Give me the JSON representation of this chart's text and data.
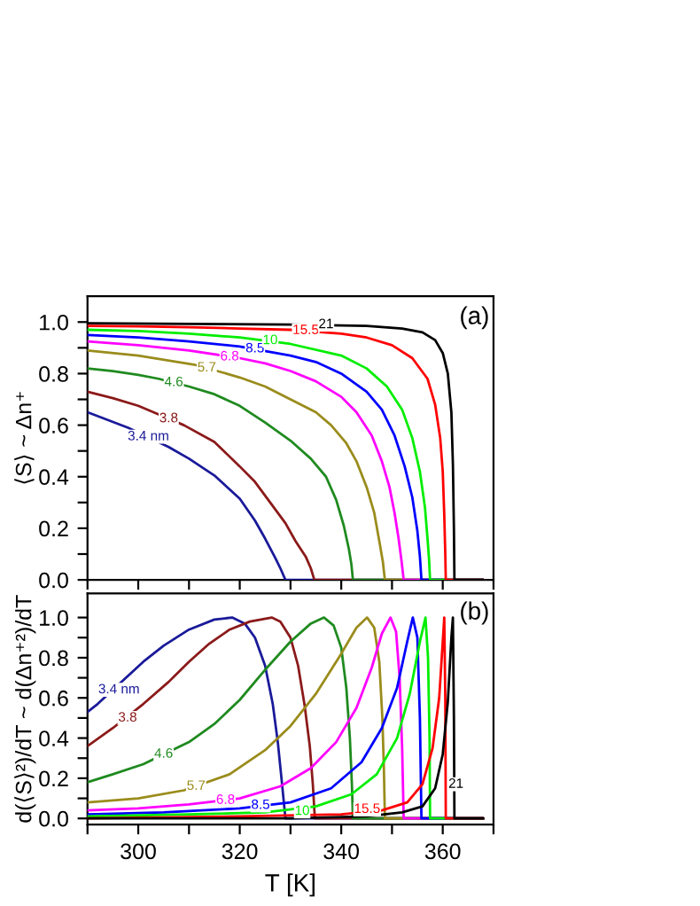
{
  "chart_data": [
    {
      "type": "line",
      "ylabel": "⟨S⟩ ~ Δn⁺",
      "xlim": [
        290,
        370
      ],
      "ylim": [
        0,
        1.1
      ],
      "xticks": [
        {
          "value": 290,
          "label": null
        },
        {
          "value": 300,
          "label": null
        },
        {
          "value": 310,
          "label": null
        },
        {
          "value": 320,
          "label": null
        },
        {
          "value": 330,
          "label": null
        },
        {
          "value": 340,
          "label": null
        },
        {
          "value": 350,
          "label": null
        },
        {
          "value": 360,
          "label": null
        },
        {
          "value": 370,
          "label": null
        }
      ],
      "yticks": [
        {
          "value": 0,
          "label": "0.0"
        },
        {
          "value": 0.1,
          "label": null
        },
        {
          "value": 0.2,
          "label": "0.2"
        },
        {
          "value": 0.3,
          "label": null
        },
        {
          "value": 0.4,
          "label": "0.4"
        },
        {
          "value": 0.5,
          "label": null
        },
        {
          "value": 0.6,
          "label": "0.6"
        },
        {
          "value": 0.7,
          "label": null
        },
        {
          "value": 0.8,
          "label": "0.8"
        },
        {
          "value": 0.9,
          "label": null
        },
        {
          "value": 1.0,
          "label": "1.0"
        }
      ],
      "tick_labels": "y",
      "grid": false,
      "legend": false,
      "marker": "none",
      "line_style": "solid",
      "series": [
        {
          "color": "#1a1a9a",
          "x": [
            290,
            294,
            298,
            306,
            310,
            315,
            320,
            323,
            325,
            327,
            328,
            329,
            368
          ],
          "values": [
            0.65,
            0.62,
            0.59,
            0.515,
            0.47,
            0.405,
            0.315,
            0.23,
            0.16,
            0.085,
            0.045,
            0,
            0
          ]
        },
        {
          "color": "#8b1a1a",
          "x": [
            290,
            295,
            300,
            303,
            309,
            315,
            320,
            323,
            326,
            329,
            331,
            333,
            334,
            334.7,
            368
          ],
          "values": [
            0.73,
            0.705,
            0.675,
            0.65,
            0.6,
            0.535,
            0.44,
            0.38,
            0.3,
            0.22,
            0.15,
            0.09,
            0.045,
            0,
            0
          ]
        },
        {
          "color": "#1f8a1f",
          "x": [
            290,
            295,
            300,
            304,
            310,
            315,
            320,
            325,
            330,
            334,
            337,
            339,
            340.5,
            341.5,
            342,
            342.3,
            368
          ],
          "values": [
            0.82,
            0.81,
            0.795,
            0.78,
            0.75,
            0.72,
            0.675,
            0.61,
            0.54,
            0.47,
            0.4,
            0.31,
            0.21,
            0.12,
            0.06,
            0,
            0
          ]
        },
        {
          "color": "#9a8c1c",
          "x": [
            290,
            300,
            311,
            316.5,
            320,
            325,
            330,
            335,
            338,
            341,
            343,
            345,
            346.5,
            347.5,
            348.2,
            348.6,
            368
          ],
          "values": [
            0.89,
            0.87,
            0.835,
            0.805,
            0.785,
            0.75,
            0.7,
            0.65,
            0.6,
            0.53,
            0.46,
            0.36,
            0.26,
            0.15,
            0.07,
            0,
            0
          ]
        },
        {
          "color": "#ff00ff",
          "x": [
            290,
            300,
            310,
            320,
            325,
            330,
            335,
            340,
            343,
            346,
            348,
            349.5,
            350.5,
            351.3,
            351.9,
            352.3,
            368
          ],
          "values": [
            0.925,
            0.91,
            0.89,
            0.86,
            0.84,
            0.81,
            0.77,
            0.71,
            0.65,
            0.56,
            0.46,
            0.36,
            0.26,
            0.16,
            0.07,
            0,
            0
          ]
        },
        {
          "color": "#0000ff",
          "x": [
            290,
            300,
            310,
            320,
            330,
            335,
            340,
            345,
            348,
            350.5,
            352.5,
            354,
            355,
            355.5,
            355.8,
            368
          ],
          "values": [
            0.95,
            0.94,
            0.925,
            0.905,
            0.87,
            0.845,
            0.8,
            0.73,
            0.66,
            0.56,
            0.44,
            0.32,
            0.19,
            0.09,
            0,
            0
          ]
        },
        {
          "color": "#00ee00",
          "x": [
            290,
            300,
            310,
            320,
            330,
            340,
            345,
            349,
            352,
            354,
            355.5,
            356.5,
            357,
            357.3,
            357.5,
            368
          ],
          "values": [
            0.97,
            0.965,
            0.955,
            0.94,
            0.915,
            0.87,
            0.82,
            0.75,
            0.66,
            0.55,
            0.42,
            0.28,
            0.16,
            0.08,
            0,
            0
          ]
        },
        {
          "color": "#ff0000",
          "x": [
            290,
            300,
            310,
            320,
            330,
            340,
            345,
            350,
            354,
            357,
            358.5,
            359.5,
            360,
            360.3,
            360.5,
            360.6,
            368
          ],
          "values": [
            0.985,
            0.983,
            0.98,
            0.975,
            0.97,
            0.955,
            0.94,
            0.91,
            0.86,
            0.78,
            0.68,
            0.55,
            0.42,
            0.25,
            0.1,
            0,
            0
          ]
        },
        {
          "color": "#000000",
          "x": [
            290,
            310,
            330,
            345,
            352,
            356,
            358.5,
            360,
            361,
            361.7,
            362,
            362.2,
            362.3,
            368
          ],
          "values": [
            0.995,
            0.993,
            0.99,
            0.985,
            0.975,
            0.96,
            0.93,
            0.88,
            0.8,
            0.65,
            0.45,
            0.2,
            0,
            0
          ]
        }
      ],
      "annotations": [
        {
          "text": "3.4 nm",
          "x": 302,
          "y": 0.555
        },
        {
          "text": "3.8",
          "x": 306,
          "y": 0.625
        },
        {
          "text": "4.6",
          "x": 307,
          "y": 0.765
        },
        {
          "text": "5.7",
          "x": 313.5,
          "y": 0.822
        },
        {
          "text": "6.8",
          "x": 318,
          "y": 0.865
        },
        {
          "text": "8.5",
          "x": 323,
          "y": 0.896
        },
        {
          "text": "10",
          "x": 326,
          "y": 0.928
        },
        {
          "text": "15.5",
          "x": 333,
          "y": 0.967
        },
        {
          "text": "21",
          "x": 337,
          "y": 0.99
        },
        "(a)"
      ]
    },
    {
      "type": "line",
      "xlabel": "T [K]",
      "ylabel": "d(⟨S⟩²)/dT ~ d(Δn⁺²)/dT",
      "xlim": [
        290,
        370
      ],
      "ylim": [
        -0.03,
        1.12
      ],
      "xticks": [
        {
          "value": 290,
          "label": null
        },
        300,
        {
          "value": 310,
          "label": null
        },
        320,
        {
          "value": 330,
          "label": null
        },
        340,
        {
          "value": 350,
          "label": null
        },
        360,
        {
          "value": 370,
          "label": null
        }
      ],
      "yticks": [
        {
          "value": 0,
          "label": "0.0"
        },
        {
          "value": 0.1,
          "label": null
        },
        {
          "value": 0.2,
          "label": "0.2"
        },
        {
          "value": 0.3,
          "label": null
        },
        {
          "value": 0.4,
          "label": "0.4"
        },
        {
          "value": 0.5,
          "label": null
        },
        {
          "value": 0.6,
          "label": "0.6"
        },
        {
          "value": 0.7,
          "label": null
        },
        {
          "value": 0.8,
          "label": "0.8"
        },
        {
          "value": 0.9,
          "label": null
        },
        {
          "value": 1.0,
          "label": "1.0"
        }
      ],
      "grid": false,
      "legend": false,
      "marker": "none",
      "line_style": "solid",
      "series": [
        {
          "color": "#1a1a9a",
          "x": [
            290,
            292,
            301,
            305,
            310,
            315,
            318.5,
            321,
            323,
            325,
            326.5,
            327.5,
            328.3,
            329,
            368
          ],
          "values": [
            0.53,
            0.57,
            0.78,
            0.86,
            0.94,
            0.99,
            1.0,
            0.97,
            0.9,
            0.76,
            0.57,
            0.38,
            0.18,
            0,
            0
          ]
        },
        {
          "color": "#8b1a1a",
          "x": [
            290,
            295,
            301,
            306,
            310,
            314,
            318,
            322,
            326.3,
            328,
            330,
            331.5,
            332.8,
            333.8,
            334.4,
            334.8,
            368
          ],
          "values": [
            0.36,
            0.45,
            0.57,
            0.68,
            0.78,
            0.87,
            0.94,
            0.98,
            1.0,
            0.98,
            0.9,
            0.76,
            0.56,
            0.36,
            0.17,
            0,
            0
          ]
        },
        {
          "color": "#1f8a1f",
          "x": [
            290,
            295,
            301,
            310,
            315,
            320,
            325,
            330,
            334,
            336.6,
            338.5,
            340,
            341,
            341.7,
            342.1,
            342.3,
            368
          ],
          "values": [
            0.18,
            0.22,
            0.27,
            0.38,
            0.47,
            0.59,
            0.74,
            0.88,
            0.97,
            1.0,
            0.96,
            0.85,
            0.65,
            0.4,
            0.17,
            0,
            0
          ]
        },
        {
          "color": "#9a8c1c",
          "x": [
            290,
            300,
            309,
            318,
            325,
            330,
            335,
            340,
            343,
            345.1,
            346.5,
            347.5,
            348.1,
            348.4,
            348.6,
            368
          ],
          "values": [
            0.08,
            0.1,
            0.14,
            0.22,
            0.34,
            0.46,
            0.62,
            0.82,
            0.95,
            1.0,
            0.95,
            0.78,
            0.5,
            0.25,
            0,
            0
          ]
        },
        {
          "color": "#ff00ff",
          "x": [
            290,
            300,
            310,
            320,
            328,
            334,
            339,
            343,
            346,
            348,
            349.7,
            350.8,
            351.5,
            352,
            352.3,
            368
          ],
          "values": [
            0.04,
            0.05,
            0.07,
            0.1,
            0.16,
            0.25,
            0.38,
            0.55,
            0.75,
            0.92,
            1.0,
            0.93,
            0.7,
            0.35,
            0,
            0
          ]
        },
        {
          "color": "#0000ff",
          "x": [
            290,
            305,
            320,
            330,
            338,
            344,
            348,
            351,
            353,
            354.1,
            355,
            355.5,
            355.8,
            368
          ],
          "values": [
            0.02,
            0.03,
            0.05,
            0.08,
            0.15,
            0.28,
            0.45,
            0.65,
            0.88,
            1.0,
            0.9,
            0.5,
            0,
            0
          ]
        },
        {
          "color": "#00ee00",
          "x": [
            290,
            310,
            325,
            335,
            342,
            347,
            351,
            353.5,
            355.5,
            356.6,
            357.1,
            357.4,
            357.5,
            368
          ],
          "values": [
            0.01,
            0.02,
            0.03,
            0.06,
            0.12,
            0.22,
            0.4,
            0.62,
            0.88,
            1.0,
            0.8,
            0.4,
            0,
            0
          ]
        },
        {
          "color": "#ff0000",
          "x": [
            290,
            320,
            340,
            348,
            353,
            356,
            358,
            359.3,
            360,
            360.3,
            360.5,
            360.6,
            368
          ],
          "values": [
            0,
            0.01,
            0.02,
            0.04,
            0.08,
            0.17,
            0.35,
            0.6,
            0.88,
            1.0,
            0.6,
            0,
            0
          ]
        },
        {
          "color": "#000000",
          "x": [
            290,
            330,
            345,
            352,
            356,
            358.5,
            360,
            361,
            361.7,
            362,
            362.2,
            362.3,
            368
          ],
          "values": [
            0,
            0,
            0.01,
            0.03,
            0.06,
            0.15,
            0.32,
            0.58,
            0.9,
            1.0,
            0.5,
            0,
            0
          ]
        }
      ],
      "annotations": [
        {
          "text": "3.4 nm",
          "x": 296.2,
          "y": 0.64
        },
        {
          "text": "3.8",
          "x": 297.9,
          "y": 0.5
        },
        {
          "text": "4.6",
          "x": 305,
          "y": 0.32
        },
        {
          "text": "5.7",
          "x": 311.4,
          "y": 0.16
        },
        {
          "text": "6.8",
          "x": 317.2,
          "y": 0.09
        },
        {
          "text": "8.5",
          "x": 324.1,
          "y": 0.065
        },
        {
          "text": "10",
          "x": 332.3,
          "y": 0.035
        },
        {
          "text": "15.5",
          "x": 345.1,
          "y": 0.045
        },
        {
          "text": "21",
          "x": 362.6,
          "y": 0.17
        },
        "(b)"
      ]
    }
  ]
}
